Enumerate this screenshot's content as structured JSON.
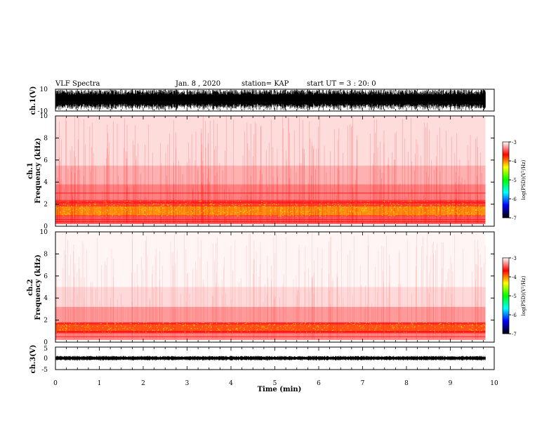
{
  "header": {
    "title": "VLF Spectra",
    "date": "Jan. 8 , 2020",
    "station": "station= KAP",
    "start": "start  UT =  3 : 20: 0"
  },
  "chart_data": [
    {
      "type": "line",
      "panel": "ch1-waveform",
      "ylabel": "ch.1(V)",
      "ylim": [
        -10,
        10
      ],
      "yticks": [
        -10,
        10
      ],
      "xlim": [
        0,
        10
      ],
      "series_color": "#000000"
    },
    {
      "type": "heatmap",
      "panel": "ch1-spectrogram",
      "ylabel": "ch.1\nFrequency (kHz)",
      "ylabel_lines": [
        "ch.1",
        "Frequency (kHz)"
      ],
      "ylim": [
        0,
        10
      ],
      "yticks": [
        0,
        2,
        4,
        6,
        8,
        10
      ],
      "xlim": [
        0,
        10
      ],
      "data_end_min": 9.8,
      "colorbar": {
        "label": "log(PSD)(V²/Hz)",
        "range": [
          -7,
          -3
        ],
        "ticks": [
          -3,
          -4,
          -5,
          -6,
          -7
        ],
        "colors": [
          "#000000",
          "#0000ff",
          "#00ffff",
          "#00ff00",
          "#ffff00",
          "#ff0000",
          "#ffffff"
        ]
      }
    },
    {
      "type": "heatmap",
      "panel": "ch2-spectrogram",
      "ylabel_lines": [
        "ch.2",
        "Frequency (kHz)"
      ],
      "ylim": [
        0,
        10
      ],
      "yticks": [
        0,
        2,
        4,
        6,
        8,
        10
      ],
      "xlim": [
        0,
        10
      ],
      "data_end_min": 9.8,
      "colorbar": {
        "label": "log(PSD)(V²/Hz)",
        "range": [
          -7,
          -3
        ],
        "ticks": [
          -3,
          -4,
          -5,
          -6,
          -7
        ]
      }
    },
    {
      "type": "line",
      "panel": "ch3-waveform",
      "ylabel": "ch.3(V)",
      "ylim": [
        -5,
        5
      ],
      "yticks": [
        -5,
        0,
        5
      ],
      "xlim": [
        0,
        10
      ],
      "xticks": [
        0,
        1,
        2,
        3,
        4,
        5,
        6,
        7,
        8,
        9,
        10
      ],
      "xlabel": "Time (min)",
      "series_color": "#000000"
    }
  ]
}
